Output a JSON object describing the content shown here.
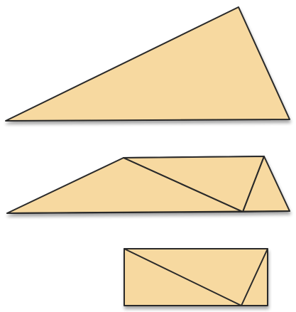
{
  "colors": {
    "paper_fill": "#f7d9a0",
    "paper_edge": "#2a2a2a",
    "shadow": "#d8d8d8",
    "background": "#ffffff"
  },
  "figures": [
    {
      "name": "original-triangle",
      "description_shown": false
    },
    {
      "name": "folded-triangle",
      "description_shown": false
    },
    {
      "name": "folded-rectangle",
      "description_shown": false
    }
  ]
}
